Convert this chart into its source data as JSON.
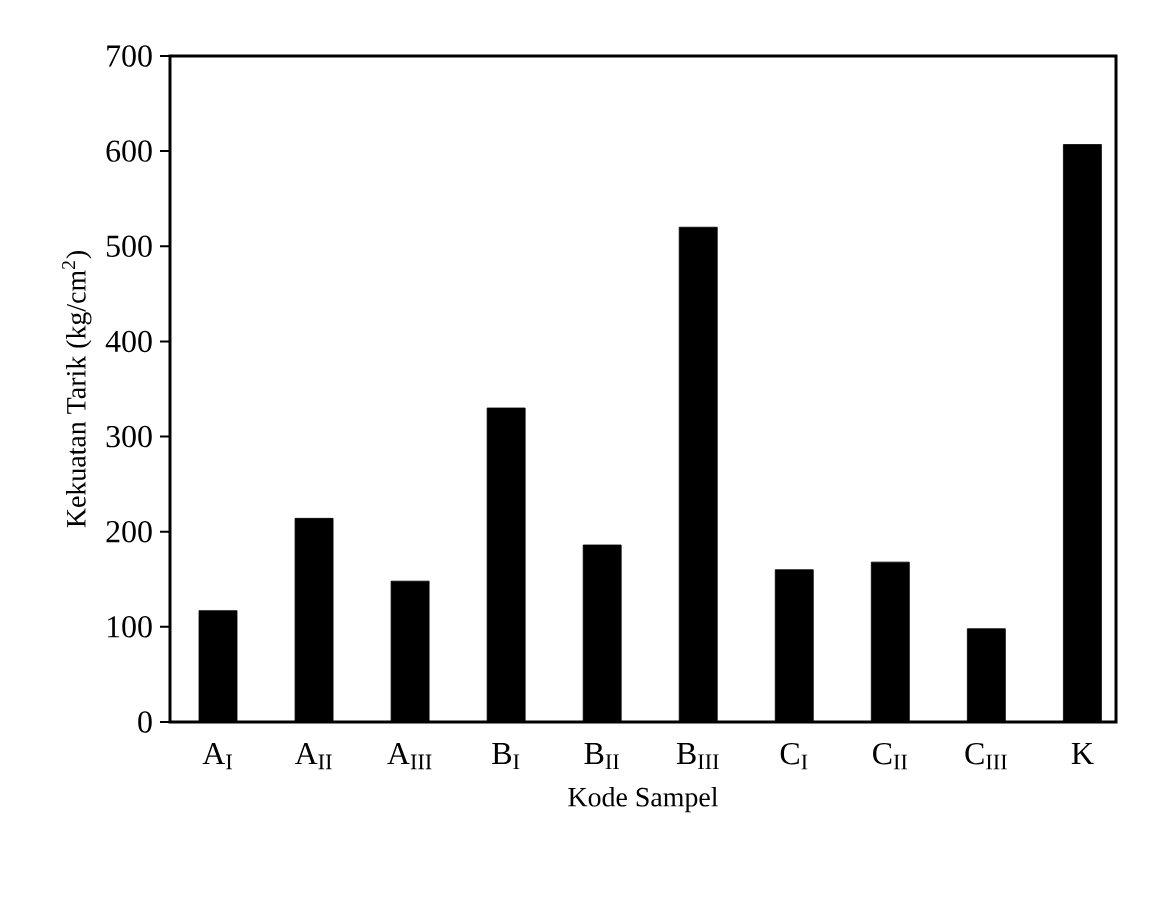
{
  "chart_data": {
    "type": "bar",
    "xlabel": "Kode Sampel",
    "ylabel": "Kekuatan Tarik (kg/cm$^{2}$)",
    "categories": [
      "A$_{I}$",
      "A$_{II}$",
      "A$_{III}$",
      "B$_{I}$",
      "B$_{II}$",
      "B$_{III}$",
      "C$_{I}$",
      "C$_{II}$",
      "C$_{III}$",
      "K"
    ],
    "values": [
      117,
      214,
      148,
      330,
      186,
      520,
      160,
      168,
      98,
      607
    ],
    "color": "#000000",
    "ylim": [
      0,
      700
    ],
    "yticks": [
      0,
      100,
      200,
      300,
      400,
      500,
      600,
      700
    ],
    "grid": false
  }
}
